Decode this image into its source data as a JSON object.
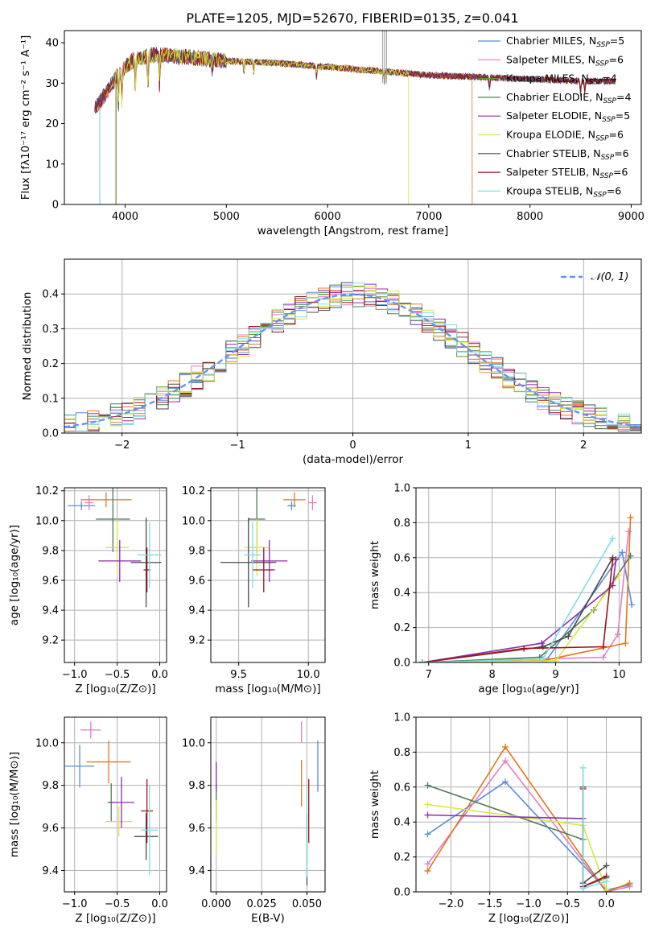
{
  "colors": {
    "chabrier_miles": "#5b8cd6",
    "salpeter_miles": "#e17fc0",
    "kroupa_miles": "#6b8e23",
    "chabrier_elodie": "#4f7a5a",
    "salpeter_elodie": "#8e2cae",
    "kroupa_elodie": "#d6e840",
    "chabrier_stelib": "#4a4a4a",
    "salpeter_stelib": "#a01218",
    "kroupa_stelib": "#7fdde0",
    "orange_series": "#e07720",
    "gaussian": "#6495ed",
    "grid": "#b0b0b0"
  },
  "chart_data": [
    {
      "id": "spectrum",
      "type": "line",
      "title": "PLATE=1205, MJD=52670, FIBERID=0135, z=0.041",
      "xlabel": "wavelength [Angstrom, rest frame]",
      "ylabel": "Flux [fλ10⁻¹⁷ erg cm⁻² s⁻¹ A⁻¹]",
      "xlim": [
        3400,
        9100
      ],
      "ylim": [
        0,
        43
      ],
      "xticks": [
        4000,
        5000,
        6000,
        7000,
        8000,
        9000
      ],
      "yticks": [
        0,
        10,
        20,
        30,
        40
      ],
      "legend_position": "top-right",
      "legend": [
        {
          "label": "Chabrier MILES, N",
          "sub": "SSP",
          "suffix": "=5",
          "color": "chabrier_miles"
        },
        {
          "label": "Salpeter MILES, N",
          "sub": "SSP",
          "suffix": "=6",
          "color": "salpeter_miles"
        },
        {
          "label": "Kroupa MILES, N",
          "sub": "SSP",
          "suffix": "=4",
          "color": "kroupa_miles"
        },
        {
          "label": "Chabrier ELODIE, N",
          "sub": "SSP",
          "suffix": "=4",
          "color": "chabrier_elodie"
        },
        {
          "label": "Salpeter ELODIE, N",
          "sub": "SSP",
          "suffix": "=5",
          "color": "salpeter_elodie"
        },
        {
          "label": "Kroupa ELODIE, N",
          "sub": "SSP",
          "suffix": "=6",
          "color": "kroupa_elodie"
        },
        {
          "label": "Chabrier STELIB, N",
          "sub": "SSP",
          "suffix": "=6",
          "color": "chabrier_stelib"
        },
        {
          "label": "Salpeter STELIB, N",
          "sub": "SSP",
          "suffix": "=6",
          "color": "salpeter_stelib"
        },
        {
          "label": "Kroupa STELIB, N",
          "sub": "SSP",
          "suffix": "=6",
          "color": "kroupa_stelib"
        }
      ],
      "continuum": [
        [
          3700,
          24
        ],
        [
          3800,
          27
        ],
        [
          3900,
          31
        ],
        [
          4000,
          34
        ],
        [
          4100,
          36
        ],
        [
          4300,
          37
        ],
        [
          4600,
          36.5
        ],
        [
          5000,
          35.5
        ],
        [
          5500,
          35
        ],
        [
          6000,
          34
        ],
        [
          6500,
          33
        ],
        [
          7000,
          32
        ],
        [
          7500,
          31.5
        ],
        [
          8000,
          31
        ],
        [
          8500,
          30.5
        ],
        [
          8800,
          30.5
        ]
      ],
      "cutoffs": [
        {
          "color": "kroupa_stelib",
          "x": 3750
        },
        {
          "color": "kroupa_miles",
          "x": 3910
        },
        {
          "color": "kroupa_elodie",
          "x": 6800
        },
        {
          "color": "orange_series",
          "x": 7430
        }
      ]
    },
    {
      "id": "residuals",
      "type": "step",
      "xlabel": "(data-model)/error",
      "ylabel": "Normed distribution",
      "xlim": [
        -2.5,
        2.5
      ],
      "ylim": [
        0,
        0.5
      ],
      "xticks": [
        -2,
        -1,
        0,
        1,
        2
      ],
      "yticks": [
        0.0,
        0.1,
        0.2,
        0.3,
        0.4
      ],
      "legend_position": "top-right",
      "gaussian_label": "𝒩(0, 1)",
      "bin_width": 0.1
    },
    {
      "id": "age_vs_Z",
      "type": "scatter",
      "xlabel": "Z [log₁₀(Z/Z⊙)]",
      "ylabel": "age  [log₁₀(age/yr)]",
      "xlim": [
        -1.12,
        0.08
      ],
      "ylim": [
        9.05,
        10.22
      ],
      "xticks": [
        -1.0,
        -0.5,
        0.0
      ],
      "yticks": [
        9.2,
        9.4,
        9.6,
        9.8,
        10.0,
        10.2
      ],
      "points": [
        {
          "color": "chabrier_miles",
          "x": -0.92,
          "xe": 0.16,
          "y": 10.1,
          "ye": 0.03
        },
        {
          "color": "salpeter_miles",
          "x": -0.83,
          "xe": 0.05,
          "y": 10.12,
          "ye": 0.05
        },
        {
          "color": "orange_series",
          "x": -0.63,
          "xe": 0.3,
          "y": 10.14,
          "ye": 0.05
        },
        {
          "color": "chabrier_elodie",
          "x": -0.55,
          "xe": 0.2,
          "y": 10.01,
          "ye": 0.22
        },
        {
          "color": "kroupa_elodie",
          "x": -0.5,
          "xe": 0.14,
          "y": 9.82,
          "ye": 0.19
        },
        {
          "color": "salpeter_elodie",
          "x": -0.47,
          "xe": 0.25,
          "y": 9.73,
          "ye": 0.14
        },
        {
          "color": "chabrier_stelib",
          "x": -0.16,
          "xe": 0.18,
          "y": 9.72,
          "ye": 0.3
        },
        {
          "color": "salpeter_stelib",
          "x": -0.15,
          "xe": 0.04,
          "y": 9.67,
          "ye": 0.15
        },
        {
          "color": "kroupa_stelib",
          "x": -0.12,
          "xe": 0.14,
          "y": 9.77,
          "ye": 0.22
        }
      ]
    },
    {
      "id": "age_vs_mass",
      "type": "scatter",
      "xlabel": "mass [log₁₀(M/M⊙)]",
      "ylabel": "",
      "xlim": [
        9.3,
        10.12
      ],
      "ylim": [
        9.05,
        10.22
      ],
      "xticks": [
        9.5,
        10.0
      ],
      "yticks": [
        9.2,
        9.4,
        9.6,
        9.8,
        10.0,
        10.2
      ],
      "points": [
        {
          "color": "chabrier_miles",
          "x": 9.88,
          "xe": 0.03,
          "y": 10.1,
          "ye": 0.03
        },
        {
          "color": "salpeter_miles",
          "x": 10.03,
          "xe": 0.03,
          "y": 10.12,
          "ye": 0.05
        },
        {
          "color": "orange_series",
          "x": 9.9,
          "xe": 0.08,
          "y": 10.14,
          "ye": 0.05
        },
        {
          "color": "chabrier_elodie",
          "x": 9.63,
          "xe": 0.06,
          "y": 10.01,
          "ye": 0.22
        },
        {
          "color": "kroupa_elodie",
          "x": 9.63,
          "xe": 0.09,
          "y": 9.82,
          "ye": 0.19
        },
        {
          "color": "salpeter_elodie",
          "x": 9.72,
          "xe": 0.13,
          "y": 9.73,
          "ye": 0.14
        },
        {
          "color": "chabrier_stelib",
          "x": 9.57,
          "xe": 0.2,
          "y": 9.72,
          "ye": 0.3
        },
        {
          "color": "salpeter_stelib",
          "x": 9.68,
          "xe": 0.08,
          "y": 9.67,
          "ye": 0.15
        },
        {
          "color": "kroupa_stelib",
          "x": 9.6,
          "xe": 0.06,
          "y": 9.77,
          "ye": 0.22
        }
      ]
    },
    {
      "id": "weight_vs_age",
      "type": "line",
      "xlabel": "age  [log₁₀(age/yr)]",
      "ylabel": "mass weight",
      "xlim": [
        6.8,
        10.35
      ],
      "ylim": [
        0,
        1.0
      ],
      "xticks": [
        7,
        8,
        9,
        10
      ],
      "yticks": [
        0.0,
        0.2,
        0.4,
        0.6,
        0.8,
        1.0
      ],
      "series": [
        {
          "color": "chabrier_miles",
          "points": [
            [
              6.9,
              0.0
            ],
            [
              8.85,
              0.01
            ],
            [
              10.05,
              0.63
            ],
            [
              10.2,
              0.33
            ]
          ]
        },
        {
          "color": "salpeter_miles",
          "points": [
            [
              6.9,
              0.0
            ],
            [
              9.75,
              0.03
            ],
            [
              9.98,
              0.16
            ],
            [
              10.15,
              0.75
            ]
          ]
        },
        {
          "color": "orange_series",
          "points": [
            [
              6.9,
              0.0
            ],
            [
              8.8,
              0.01
            ],
            [
              10.1,
              0.11
            ],
            [
              10.18,
              0.83
            ]
          ]
        },
        {
          "color": "chabrier_elodie",
          "points": [
            [
              6.9,
              0.0
            ],
            [
              8.75,
              0.03
            ],
            [
              9.6,
              0.3
            ],
            [
              10.18,
              0.61
            ]
          ]
        },
        {
          "color": "kroupa_elodie",
          "points": [
            [
              6.9,
              0.0
            ],
            [
              9.0,
              0.01
            ],
            [
              10.0,
              0.5
            ]
          ]
        },
        {
          "color": "salpeter_elodie",
          "points": [
            [
              6.9,
              0.0
            ],
            [
              8.78,
              0.11
            ],
            [
              9.9,
              0.44
            ],
            [
              9.95,
              0.59
            ]
          ]
        },
        {
          "color": "chabrier_stelib",
          "points": [
            [
              6.9,
              0.0
            ],
            [
              8.8,
              0.09
            ],
            [
              9.2,
              0.15
            ],
            [
              9.9,
              0.6
            ]
          ]
        },
        {
          "color": "salpeter_stelib",
          "points": [
            [
              6.9,
              0.0
            ],
            [
              8.5,
              0.08
            ],
            [
              9.75,
              0.09
            ],
            [
              9.9,
              0.59
            ]
          ]
        },
        {
          "color": "kroupa_stelib",
          "points": [
            [
              6.9,
              0.0
            ],
            [
              8.8,
              0.02
            ],
            [
              9.9,
              0.71
            ]
          ]
        }
      ]
    },
    {
      "id": "mass_vs_Z",
      "type": "scatter",
      "xlabel": "Z [log₁₀(Z/Z⊙)]",
      "ylabel": "mass [log₁₀(M/M⊙)]",
      "xlim": [
        -1.12,
        0.08
      ],
      "ylim": [
        9.3,
        10.12
      ],
      "xticks": [
        -1.0,
        -0.5,
        0.0
      ],
      "yticks": [
        9.4,
        9.6,
        9.8,
        10.0
      ],
      "points": [
        {
          "color": "chabrier_miles",
          "x": -0.94,
          "xe": 0.17,
          "y": 9.89,
          "ye": 0.1
        },
        {
          "color": "salpeter_miles",
          "x": -0.81,
          "xe": 0.12,
          "y": 10.06,
          "ye": 0.04
        },
        {
          "color": "orange_series",
          "x": -0.6,
          "xe": 0.26,
          "y": 9.91,
          "ye": 0.1
        },
        {
          "color": "chabrier_elodie",
          "x": -0.57,
          "xe": 0.04,
          "y": 9.72,
          "ye": 0.09
        },
        {
          "color": "kroupa_elodie",
          "x": -0.48,
          "xe": 0.16,
          "y": 9.63,
          "ye": 0.07
        },
        {
          "color": "salpeter_elodie",
          "x": -0.45,
          "xe": 0.15,
          "y": 9.72,
          "ye": 0.12
        },
        {
          "color": "chabrier_stelib",
          "x": -0.16,
          "xe": 0.14,
          "y": 9.56,
          "ye": 0.11
        },
        {
          "color": "salpeter_stelib",
          "x": -0.15,
          "xe": 0.07,
          "y": 9.68,
          "ye": 0.15
        },
        {
          "color": "kroupa_stelib",
          "x": -0.12,
          "xe": 0.1,
          "y": 9.59,
          "ye": 0.21
        }
      ]
    },
    {
      "id": "mass_vs_ebv",
      "type": "scatter",
      "xlabel": "E(B-V)",
      "ylabel": "",
      "xlim": [
        -0.003,
        0.06
      ],
      "ylim": [
        9.3,
        10.12
      ],
      "xticks": [
        0.0,
        0.025,
        0.05
      ],
      "xticklabels": [
        "0.000",
        "0.025",
        "0.050"
      ],
      "yticks": [
        9.4,
        9.6,
        9.8,
        10.0
      ],
      "points": [
        {
          "color": "chabrier_miles",
          "x": 0.056,
          "y": 9.89,
          "ye": 0.12
        },
        {
          "color": "salpeter_miles",
          "x": 0.047,
          "y": 10.05,
          "ye": 0.05
        },
        {
          "color": "orange_series",
          "x": 0.047,
          "y": 9.81,
          "ye": 0.11
        },
        {
          "color": "chabrier_elodie",
          "x": 0.0,
          "y": 9.72,
          "ye": 0.09
        },
        {
          "color": "kroupa_elodie",
          "x": 0.0,
          "y": 9.6,
          "ye": 0.13
        },
        {
          "color": "salpeter_elodie",
          "x": 0.0,
          "y": 9.84,
          "ye": 0.07
        },
        {
          "color": "chabrier_stelib",
          "x": 0.05,
          "y": 9.5,
          "ye": 0.17
        },
        {
          "color": "salpeter_stelib",
          "x": 0.051,
          "y": 9.68,
          "ye": 0.15
        },
        {
          "color": "kroupa_stelib",
          "x": 0.05,
          "y": 9.57,
          "ye": 0.2
        }
      ]
    },
    {
      "id": "weight_vs_Z",
      "type": "line",
      "xlabel": "Z [log₁₀(Z/Z⊙)]",
      "ylabel": "mass weight",
      "xlim": [
        -2.45,
        0.45
      ],
      "ylim": [
        0,
        1.0
      ],
      "xticks": [
        -2.0,
        -1.5,
        -1.0,
        -0.5,
        0.0
      ],
      "yticks": [
        0.0,
        0.2,
        0.4,
        0.6,
        0.8,
        1.0
      ],
      "series": [
        {
          "color": "chabrier_miles",
          "points": [
            [
              -2.3,
              0.33
            ],
            [
              -1.3,
              0.63
            ],
            [
              0.0,
              0.01
            ],
            [
              0.3,
              0.04
            ]
          ]
        },
        {
          "color": "salpeter_miles",
          "points": [
            [
              -2.3,
              0.16
            ],
            [
              -1.3,
              0.75
            ],
            [
              0.0,
              0.0
            ],
            [
              0.3,
              0.03
            ]
          ]
        },
        {
          "color": "orange_series",
          "points": [
            [
              -2.3,
              0.12
            ],
            [
              -1.3,
              0.83
            ],
            [
              0.0,
              0.0
            ],
            [
              0.3,
              0.05
            ]
          ]
        },
        {
          "color": "chabrier_elodie",
          "points": [
            [
              -2.3,
              0.61
            ],
            [
              -0.3,
              0.3
            ],
            [
              -0.3,
              0.03
            ],
            [
              0.0,
              0.08
            ]
          ]
        },
        {
          "color": "kroupa_elodie",
          "points": [
            [
              -2.3,
              0.5
            ],
            [
              -0.3,
              0.38
            ],
            [
              0.0,
              0.01
            ]
          ]
        },
        {
          "color": "salpeter_elodie",
          "points": [
            [
              -2.3,
              0.44
            ],
            [
              -0.3,
              0.42
            ]
          ]
        },
        {
          "color": "chabrier_stelib",
          "points": [
            [
              -0.3,
              0.6
            ],
            [
              -0.3,
              0.05
            ],
            [
              0.0,
              0.15
            ]
          ]
        },
        {
          "color": "salpeter_stelib",
          "points": [
            [
              -0.3,
              0.59
            ],
            [
              -0.3,
              0.03
            ],
            [
              0.0,
              0.09
            ]
          ]
        },
        {
          "color": "kroupa_stelib",
          "points": [
            [
              -0.3,
              0.71
            ],
            [
              -0.3,
              0.02
            ],
            [
              0.0,
              0.06
            ]
          ]
        }
      ]
    }
  ]
}
